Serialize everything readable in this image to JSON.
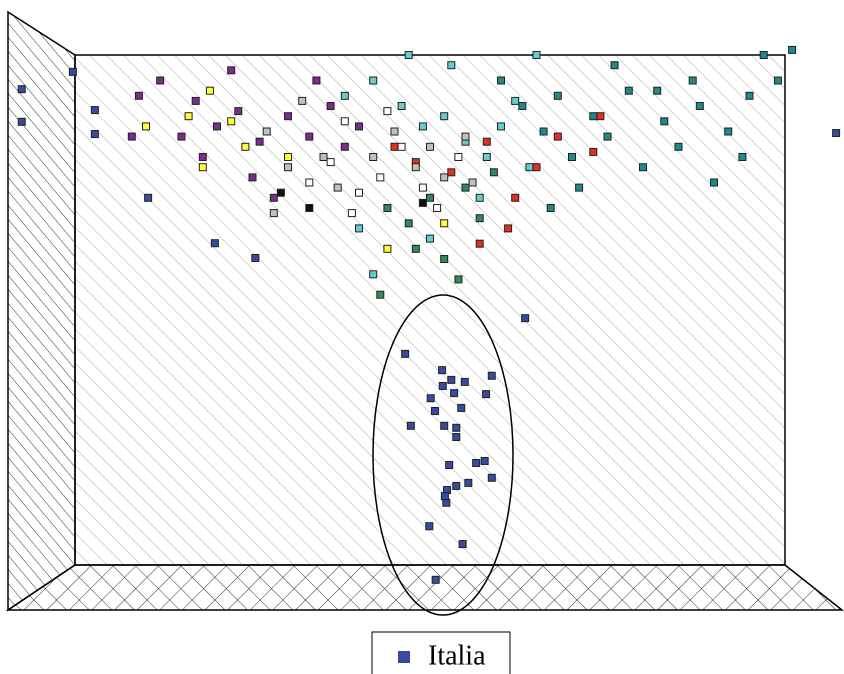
{
  "chart_data": {
    "type": "scatter",
    "xlim": [
      -10,
      108
    ],
    "ylim": [
      -5,
      110
    ],
    "series": [
      {
        "name": "Italia",
        "color": "#3a4aa0",
        "x": [
          50.8,
          54.6,
          49.9,
          52.3,
          52.4,
          52.1,
          53.7,
          55.4,
          58.7,
          56.5,
          57.7,
          52.7,
          53.7,
          53.7,
          52.0,
          47.3,
          50.7,
          54.4,
          53.4,
          57.9,
          50.1,
          51.8,
          53.0,
          54.9,
          58.7,
          51.7,
          46.5,
          63.4,
          -7.5,
          -7.5,
          2.8,
          2.8,
          10.3,
          19.7,
          25.4,
          -0.3,
          107.2
        ],
        "values": [
          -2.9,
          4.1,
          7.6,
          12.2,
          14.7,
          13.5,
          15.5,
          16.1,
          17.1,
          20.0,
          20.4,
          19.6,
          25.1,
          26.9,
          27.3,
          27.3,
          30.2,
          30.8,
          33.7,
          33.5,
          32.7,
          35.1,
          36.3,
          35.9,
          37.1,
          38.2,
          41.4,
          48.4,
          93.3,
          86.9,
          89.2,
          84.5,
          72.0,
          63.1,
          60.2,
          96.7,
          84.7
        ]
      },
      {
        "color": "#7b2d8b",
        "x": [
          9,
          12,
          17,
          20,
          23,
          26,
          30,
          33,
          36,
          18,
          25,
          28,
          15,
          38,
          40,
          22,
          34,
          8
        ],
        "values": [
          92,
          95,
          91,
          86,
          89,
          83,
          88,
          84,
          90,
          80,
          76,
          72,
          84,
          82,
          86,
          97,
          95,
          84
        ]
      },
      {
        "color": "#ffff33",
        "x": [
          10,
          16,
          18,
          22,
          24,
          19,
          52,
          44,
          30
        ],
        "values": [
          86,
          88,
          78,
          87,
          82,
          93,
          67,
          62,
          80
        ]
      },
      {
        "color": "#c0c0c0",
        "x": [
          27,
          30,
          35,
          37,
          42,
          45,
          48,
          50,
          52,
          32,
          28,
          55,
          56
        ],
        "values": [
          85,
          78,
          80,
          74,
          80,
          85,
          78,
          82,
          76,
          91,
          69,
          84,
          75
        ]
      },
      {
        "color": "#ffffff",
        "x": [
          33,
          36,
          40,
          43,
          46,
          49,
          51,
          39,
          54,
          38,
          44
        ],
        "values": [
          75,
          79,
          73,
          76,
          82,
          74,
          70,
          69,
          80,
          87,
          89
        ]
      },
      {
        "color": "#66cccc",
        "x": [
          38,
          42,
          46,
          49,
          52,
          55,
          58,
          60,
          62,
          57,
          64,
          53,
          65,
          47,
          40,
          50,
          42
        ],
        "values": [
          92,
          95,
          90,
          86,
          88,
          83,
          80,
          86,
          91,
          72,
          78,
          98,
          100,
          100,
          66,
          64,
          57
        ]
      },
      {
        "color": "#1f8a8a",
        "x": [
          60,
          63,
          66,
          68,
          70,
          73,
          75,
          78,
          80,
          83,
          85,
          88,
          90,
          92,
          95,
          97,
          99,
          101,
          94,
          87,
          76,
          71,
          67,
          82
        ],
        "values": [
          95,
          90,
          85,
          92,
          80,
          88,
          84,
          93,
          78,
          87,
          82,
          90,
          75,
          85,
          92,
          100,
          95,
          101,
          80,
          95,
          98,
          74,
          70,
          93
        ]
      },
      {
        "color": "#e03020",
        "x": [
          45,
          48,
          53,
          58,
          62,
          65,
          68,
          73,
          61,
          74,
          57
        ],
        "values": [
          82,
          79,
          77,
          83,
          72,
          78,
          84,
          81,
          66,
          88,
          63
        ]
      },
      {
        "color": "#2e8b57",
        "x": [
          44,
          47,
          50,
          52,
          55,
          57,
          48,
          54,
          43,
          59
        ],
        "values": [
          70,
          67,
          72,
          60,
          74,
          68,
          62,
          56,
          53,
          77
        ]
      },
      {
        "color": "#111111",
        "x": [
          29,
          49,
          33
        ],
        "values": [
          73,
          71,
          70
        ]
      }
    ]
  }
}
